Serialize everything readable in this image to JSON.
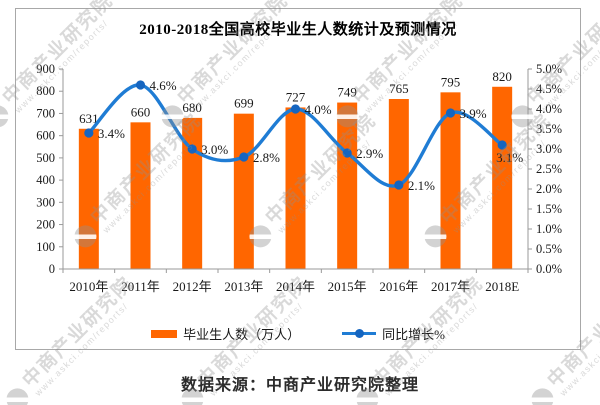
{
  "title": "2010-2018全国高校毕业生人数统计及预测情况",
  "source_note": "数据来源：中商产业研究院整理",
  "watermark": {
    "brand": "中商产业研究院",
    "url": "www.askci.com/reports/"
  },
  "chart_data": {
    "type": "bar",
    "subtype": "bar+line combo, dual axis",
    "title": "2010-2018全国高校毕业生人数统计及预测情况",
    "categories": [
      "2010年",
      "2011年",
      "2012年",
      "2013年",
      "2014年",
      "2015年",
      "2016年",
      "2017年",
      "2018E"
    ],
    "series": [
      {
        "name": "毕业生人数（万人）",
        "type": "bar",
        "axis": "left",
        "color": "#ff6600",
        "values": [
          631,
          660,
          680,
          699,
          727,
          749,
          765,
          795,
          820
        ]
      },
      {
        "name": "同比增长%",
        "type": "line",
        "axis": "right",
        "color": "#1f7cd4",
        "marker_color": "#1565c0",
        "values": [
          3.4,
          4.6,
          3.0,
          2.8,
          4.0,
          2.9,
          2.1,
          3.9,
          3.1
        ],
        "point_labels": [
          "3.4%",
          "4.6%",
          "3.0%",
          "2.8%",
          "4.0%",
          "2.9%",
          "2.1%",
          "3.9%",
          "3.1%"
        ]
      }
    ],
    "left_axis": {
      "min": 0,
      "max": 900,
      "step": 100,
      "tick_labels": [
        "0",
        "100",
        "200",
        "300",
        "400",
        "500",
        "600",
        "700",
        "800",
        "900"
      ]
    },
    "right_axis": {
      "min": 0,
      "max": 5,
      "step": 0.5,
      "tick_labels": [
        "0.0%",
        "0.5%",
        "1.0%",
        "1.5%",
        "2.0%",
        "2.5%",
        "3.0%",
        "3.5%",
        "4.0%",
        "4.5%",
        "5.0%"
      ]
    },
    "grid": false,
    "legend_position": "bottom"
  }
}
